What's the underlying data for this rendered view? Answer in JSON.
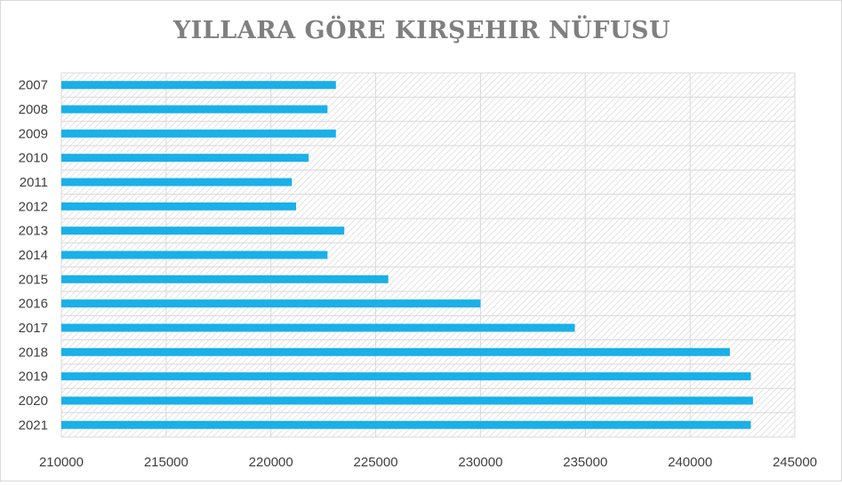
{
  "chart_data": {
    "type": "bar",
    "orientation": "horizontal",
    "title": "YILLARA GÖRE KIRŞEHIR NÜFUSU",
    "categories": [
      "2007",
      "2008",
      "2009",
      "2010",
      "2011",
      "2012",
      "2013",
      "2014",
      "2015",
      "2016",
      "2017",
      "2018",
      "2019",
      "2020",
      "2021"
    ],
    "values": [
      223100,
      222700,
      223100,
      221800,
      221000,
      221200,
      223500,
      222700,
      225600,
      230000,
      234500,
      241900,
      242900,
      243000,
      242900
    ],
    "xlim": [
      210000,
      245000
    ],
    "xticks": [
      "210000",
      "215000",
      "220000",
      "225000",
      "230000",
      "235000",
      "240000",
      "245000"
    ],
    "xlabel": "",
    "ylabel": "",
    "grid": true,
    "legend": "none",
    "colors": {
      "bar": "#1ab0e8",
      "title": "#7f7f7f",
      "axis_text": "#404040",
      "grid": "#d9d9d9",
      "hatch": "#e3e3e3"
    }
  }
}
